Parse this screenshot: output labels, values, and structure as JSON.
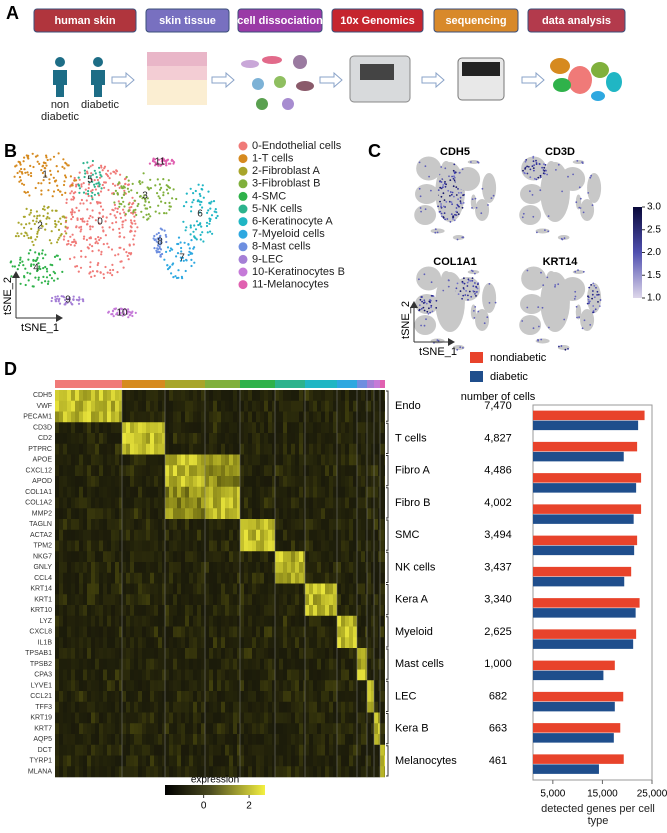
{
  "panels": {
    "a": "A",
    "b": "B",
    "c": "C",
    "d": "D"
  },
  "workflow": {
    "steps": [
      {
        "label": "human skin",
        "color": "#b0353d"
      },
      {
        "label": "skin tissue",
        "color": "#7870c0"
      },
      {
        "label": "cell dissociation",
        "color": "#9a3aa6"
      },
      {
        "label": "10x Genomics",
        "color": "#c5252e"
      },
      {
        "label": "sequencing",
        "color": "#d8892a"
      },
      {
        "label": "data analysis",
        "color": "#b33a4c"
      }
    ],
    "donors": [
      "non diabetic",
      "diabetic"
    ]
  },
  "tsne": {
    "xlabel": "tSNE_1",
    "ylabel": "tSNE_2",
    "clusters": [
      {
        "id": "0",
        "name": "0-Endothelial cells",
        "color": "#f07a78"
      },
      {
        "id": "1",
        "name": "1-T cells",
        "color": "#d68a1f"
      },
      {
        "id": "2",
        "name": "2-Fibroblast A",
        "color": "#a8a52a"
      },
      {
        "id": "3",
        "name": "3-Fibroblast B",
        "color": "#80b03c"
      },
      {
        "id": "4",
        "name": "4-SMC",
        "color": "#2fb24a"
      },
      {
        "id": "5",
        "name": "5-NK cells",
        "color": "#2cb38d"
      },
      {
        "id": "6",
        "name": "6-Keratinocyte A",
        "color": "#20b6c4"
      },
      {
        "id": "7",
        "name": "7-Myeloid cells",
        "color": "#2ea8e0"
      },
      {
        "id": "8",
        "name": "8-Mast cells",
        "color": "#6e8fe0"
      },
      {
        "id": "9",
        "name": "9-LEC",
        "color": "#a57fd6"
      },
      {
        "id": "10",
        "name": "10-Keratinocytes B",
        "color": "#c57ad8"
      },
      {
        "id": "11",
        "name": "11-Melanocytes",
        "color": "#e060b0"
      }
    ]
  },
  "markers": {
    "genes": [
      "CDH5",
      "CD3D",
      "COL1A1",
      "KRT14"
    ],
    "xlabel": "tSNE_1",
    "ylabel": "tSNE_2",
    "colorbar": {
      "lim": [
        1,
        3
      ],
      "ticks": [
        {
          "value": 1,
          "label": "1.0"
        },
        {
          "value": 1.5,
          "label": "1.5"
        },
        {
          "value": 2,
          "label": "2.0"
        },
        {
          "value": 2.5,
          "label": "2.5"
        },
        {
          "value": 3,
          "label": "3.0"
        }
      ]
    }
  },
  "heatmap": {
    "cells_header": "number of cells",
    "groups": [
      {
        "label": "Endo",
        "genes": [
          "CDH5",
          "VWF",
          "PECAM1"
        ],
        "cells": "7,470"
      },
      {
        "label": "T cells",
        "genes": [
          "CD3D",
          "CD2",
          "PTPRC"
        ],
        "cells": "4,827"
      },
      {
        "label": "Fibro A",
        "genes": [
          "APOE",
          "CXCL12",
          "APOD"
        ],
        "cells": "4,486"
      },
      {
        "label": "Fibro B",
        "genes": [
          "COL1A1",
          "COL1A2",
          "MMP2"
        ],
        "cells": "4,002"
      },
      {
        "label": "SMC",
        "genes": [
          "TAGLN",
          "ACTA2",
          "TPM2"
        ],
        "cells": "3,494"
      },
      {
        "label": "NK cells",
        "genes": [
          "NKG7",
          "GNLY",
          "CCL4"
        ],
        "cells": "3,437"
      },
      {
        "label": "Kera A",
        "genes": [
          "KRT14",
          "KRT1",
          "KRT10"
        ],
        "cells": "3,340"
      },
      {
        "label": "Myeloid",
        "genes": [
          "LYZ",
          "CXCL8",
          "IL1B"
        ],
        "cells": "2,625"
      },
      {
        "label": "Mast cells",
        "genes": [
          "TPSAB1",
          "TPSB2",
          "CPA3"
        ],
        "cells": "1,000"
      },
      {
        "label": "LEC",
        "genes": [
          "LYVE1",
          "CCL21",
          "TFF3"
        ],
        "cells": "682"
      },
      {
        "label": "Kera B",
        "genes": [
          "KRT19",
          "KRT7",
          "AQP5"
        ],
        "cells": "663"
      },
      {
        "label": "Melanocytes",
        "genes": [
          "DCT",
          "TYRP1",
          "MLANA"
        ],
        "cells": "461"
      }
    ],
    "colorbar": {
      "title": "expression",
      "lim": [
        -1.7,
        2.7
      ],
      "ticks": [
        0,
        2
      ]
    }
  },
  "chart_data": {
    "type": "bar",
    "orientation": "horizontal",
    "legend": "top-left",
    "categories": [
      null,
      null,
      null,
      null,
      null,
      null,
      null,
      null,
      null,
      null,
      null,
      null
    ],
    "series": [
      {
        "name": "nondiabetic",
        "color": "#e8432b",
        "values": [
          23500,
          22000,
          22800,
          22800,
          22000,
          20800,
          22500,
          21800,
          17500,
          19200,
          18600,
          19300
        ]
      },
      {
        "name": "diabetic",
        "color": "#1f4e8c",
        "values": [
          22200,
          19300,
          21800,
          21300,
          21400,
          19400,
          21700,
          21200,
          15200,
          17500,
          17300,
          14300
        ]
      }
    ],
    "xlim": [
      1000,
      25000
    ],
    "xticks": [
      {
        "value": 5000,
        "label": "5,000"
      },
      {
        "value": 15000,
        "label": "15,000"
      },
      {
        "value": 25000,
        "label": "25,000"
      }
    ],
    "xlabel": "detected genes per cell type"
  }
}
